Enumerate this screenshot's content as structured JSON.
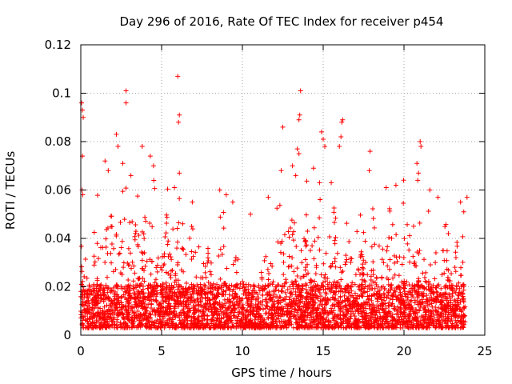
{
  "chart_data": {
    "type": "scatter",
    "title": "Day 296 of 2016, Rate Of TEC Index for receiver p454",
    "xlabel": "GPS time / hours",
    "ylabel": "ROTI / TECUs",
    "xlim": [
      0,
      25
    ],
    "ylim": [
      0,
      0.12
    ],
    "xticks": [
      0,
      5,
      10,
      15,
      20,
      25
    ],
    "xtick_labels": [
      "0",
      "5",
      "10",
      "15",
      "20",
      "25"
    ],
    "yticks": [
      0,
      0.02,
      0.04,
      0.06,
      0.08,
      0.1,
      0.12
    ],
    "ytick_labels": [
      "0",
      "0.02",
      "0.04",
      "0.06",
      "0.08",
      "0.1",
      "0.12"
    ],
    "grid": true,
    "marker": "+",
    "color": "#ff0000",
    "series": [
      {
        "name": "ROTI",
        "peak_points": [
          {
            "x": 0.05,
            "y": 0.096
          },
          {
            "x": 0.1,
            "y": 0.093
          },
          {
            "x": 0.15,
            "y": 0.09
          },
          {
            "x": 0.1,
            "y": 0.074
          },
          {
            "x": 0.08,
            "y": 0.06
          },
          {
            "x": 0.12,
            "y": 0.058
          },
          {
            "x": 1.5,
            "y": 0.072
          },
          {
            "x": 1.7,
            "y": 0.068
          },
          {
            "x": 2.2,
            "y": 0.083
          },
          {
            "x": 2.3,
            "y": 0.078
          },
          {
            "x": 2.8,
            "y": 0.101
          },
          {
            "x": 2.8,
            "y": 0.096
          },
          {
            "x": 2.6,
            "y": 0.071
          },
          {
            "x": 3.1,
            "y": 0.066
          },
          {
            "x": 3.8,
            "y": 0.078
          },
          {
            "x": 4.3,
            "y": 0.074
          },
          {
            "x": 4.5,
            "y": 0.07
          },
          {
            "x": 6.0,
            "y": 0.107
          },
          {
            "x": 6.1,
            "y": 0.091
          },
          {
            "x": 6.05,
            "y": 0.088
          },
          {
            "x": 6.1,
            "y": 0.067
          },
          {
            "x": 5.8,
            "y": 0.061
          },
          {
            "x": 6.9,
            "y": 0.055
          },
          {
            "x": 8.6,
            "y": 0.06
          },
          {
            "x": 9.4,
            "y": 0.055
          },
          {
            "x": 11.6,
            "y": 0.057
          },
          {
            "x": 12.5,
            "y": 0.086
          },
          {
            "x": 12.4,
            "y": 0.068
          },
          {
            "x": 13.1,
            "y": 0.07
          },
          {
            "x": 13.6,
            "y": 0.101
          },
          {
            "x": 13.55,
            "y": 0.091
          },
          {
            "x": 13.5,
            "y": 0.089
          },
          {
            "x": 13.4,
            "y": 0.077
          },
          {
            "x": 13.5,
            "y": 0.075
          },
          {
            "x": 13.3,
            "y": 0.066
          },
          {
            "x": 14.9,
            "y": 0.084
          },
          {
            "x": 15.0,
            "y": 0.081
          },
          {
            "x": 15.1,
            "y": 0.078
          },
          {
            "x": 16.2,
            "y": 0.089
          },
          {
            "x": 16.15,
            "y": 0.088
          },
          {
            "x": 16.1,
            "y": 0.082
          },
          {
            "x": 16.0,
            "y": 0.078
          },
          {
            "x": 15.5,
            "y": 0.063
          },
          {
            "x": 17.9,
            "y": 0.076
          },
          {
            "x": 17.85,
            "y": 0.068
          },
          {
            "x": 18.9,
            "y": 0.061
          },
          {
            "x": 20.8,
            "y": 0.071
          },
          {
            "x": 21.0,
            "y": 0.08
          },
          {
            "x": 21.05,
            "y": 0.078
          },
          {
            "x": 20.9,
            "y": 0.067
          },
          {
            "x": 20.85,
            "y": 0.064
          },
          {
            "x": 21.6,
            "y": 0.06
          },
          {
            "x": 22.1,
            "y": 0.057
          },
          {
            "x": 23.9,
            "y": 0.057
          },
          {
            "x": 23.5,
            "y": 0.055
          },
          {
            "x": 23.7,
            "y": 0.051
          },
          {
            "x": 9.0,
            "y": 0.058
          },
          {
            "x": 10.5,
            "y": 0.05
          },
          {
            "x": 14.4,
            "y": 0.069
          },
          {
            "x": 19.5,
            "y": 0.062
          }
        ],
        "envelope": {
          "hours": [
            0,
            1,
            2,
            3,
            4,
            5,
            6,
            7,
            8,
            9,
            10,
            11,
            12,
            13,
            14,
            15,
            16,
            17,
            18,
            19,
            20,
            21,
            22,
            23,
            23.8
          ],
          "typical_max": [
            0.045,
            0.05,
            0.055,
            0.06,
            0.06,
            0.055,
            0.055,
            0.045,
            0.035,
            0.048,
            0.03,
            0.03,
            0.048,
            0.062,
            0.055,
            0.055,
            0.05,
            0.05,
            0.052,
            0.05,
            0.055,
            0.06,
            0.05,
            0.05,
            0.045
          ],
          "baseline": 0.003
        }
      }
    ]
  }
}
